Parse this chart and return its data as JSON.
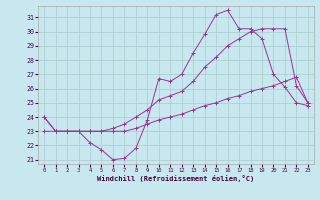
{
  "xlabel": "Windchill (Refroidissement éolien,°C)",
  "xlim_min": -0.5,
  "xlim_max": 23.5,
  "ylim_min": 20.7,
  "ylim_max": 31.8,
  "yticks": [
    21,
    22,
    23,
    24,
    25,
    26,
    27,
    28,
    29,
    30,
    31
  ],
  "xticks": [
    0,
    1,
    2,
    3,
    4,
    5,
    6,
    7,
    8,
    9,
    10,
    11,
    12,
    13,
    14,
    15,
    16,
    17,
    18,
    19,
    20,
    21,
    22,
    23
  ],
  "background_color": "#c8e8f0",
  "grid_color": "#aacccc",
  "line_color": "#993399",
  "line1_x": [
    0,
    1,
    2,
    3,
    4,
    5,
    6,
    7,
    8,
    9,
    10,
    11,
    12,
    13,
    14,
    15,
    16,
    17,
    18,
    19,
    20,
    21,
    22,
    23
  ],
  "line1_y": [
    24,
    23,
    23,
    23,
    22.2,
    21.7,
    21.0,
    21.1,
    21.8,
    23.8,
    26.7,
    26.5,
    27.0,
    28.5,
    29.8,
    31.2,
    31.5,
    30.2,
    30.2,
    29.5,
    27.0,
    26.1,
    25.0,
    24.8
  ],
  "line2_x": [
    0,
    1,
    2,
    3,
    4,
    5,
    6,
    7,
    8,
    9,
    10,
    11,
    12,
    13,
    14,
    15,
    16,
    17,
    18,
    19,
    20,
    21,
    22,
    23
  ],
  "line2_y": [
    24,
    23,
    23,
    23,
    23,
    23,
    23.2,
    23.5,
    24.0,
    24.5,
    25.2,
    25.5,
    25.8,
    26.5,
    27.5,
    28.2,
    29.0,
    29.5,
    30.0,
    30.2,
    30.2,
    30.2,
    26.2,
    25.0
  ],
  "line3_x": [
    0,
    1,
    2,
    3,
    4,
    5,
    6,
    7,
    8,
    9,
    10,
    11,
    12,
    13,
    14,
    15,
    16,
    17,
    18,
    19,
    20,
    21,
    22,
    23
  ],
  "line3_y": [
    23,
    23,
    23,
    23,
    23,
    23,
    23,
    23,
    23.2,
    23.5,
    23.8,
    24.0,
    24.2,
    24.5,
    24.8,
    25.0,
    25.3,
    25.5,
    25.8,
    26.0,
    26.2,
    26.5,
    26.8,
    25.0
  ]
}
